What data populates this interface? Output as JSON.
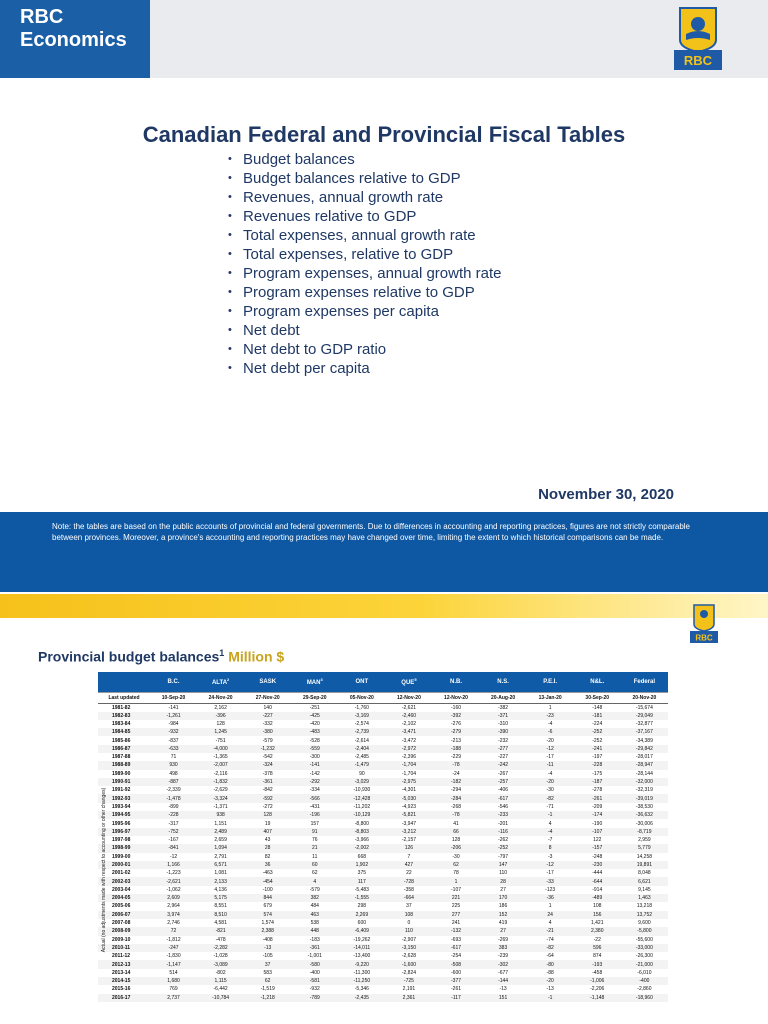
{
  "brand": {
    "line1": "RBC",
    "line2": "Economics",
    "logo_text": "RBC"
  },
  "title": "Canadian Federal and Provincial Fiscal Tables",
  "contents": [
    "Budget balances",
    "Budget balances relative to GDP",
    "Revenues, annual growth rate",
    "Revenues relative to GDP",
    "Total expenses, annual growth rate",
    "Total expenses, relative to GDP",
    "Program expenses, annual growth rate",
    "Program expenses relative to GDP",
    "Program expenses per capita",
    "Net debt",
    "Net debt to GDP ratio",
    "Net debt per capita"
  ],
  "date": "November 30, 2020",
  "note": "Note: the tables are based on the public accounts of provincial and federal governments. Due to differences in accounting and reporting practices, figures are not strictly comparable between provinces. Moreover, a province's accounting and reporting practices may have changed over time, limiting the extent to which historical comparisons can be made.",
  "colors": {
    "brand_blue": "#0d57a3",
    "title_navy": "#1f3864",
    "gold": "#f6c11a",
    "unit_gold": "#caa21b"
  },
  "section2": {
    "title": "Provincial budget balances",
    "title_sup": "1",
    "unit": "Million $",
    "side_label": "Actual (no adjustments made with respect to accounting or other changes)",
    "table": {
      "columns": [
        {
          "label": "",
          "sup": ""
        },
        {
          "label": "B.C.",
          "sup": ""
        },
        {
          "label": "ALTA",
          "sup": "2"
        },
        {
          "label": "SASK",
          "sup": ""
        },
        {
          "label": "MAN",
          "sup": "3"
        },
        {
          "label": "ONT",
          "sup": ""
        },
        {
          "label": "QUE",
          "sup": "5"
        },
        {
          "label": "N.B.",
          "sup": ""
        },
        {
          "label": "N.S.",
          "sup": ""
        },
        {
          "label": "P.E.I.",
          "sup": ""
        },
        {
          "label": "N&L.",
          "sup": ""
        },
        {
          "label": "Federal",
          "sup": ""
        }
      ],
      "last_updated": [
        "Last updated",
        "10-Sep-20",
        "24-Nov-20",
        "27-Nov-20",
        "29-Sep-20",
        "05-Nov-20",
        "12-Nov-20",
        "12-Nov-20",
        "20-Aug-20",
        "13-Jan-20",
        "30-Sep-20",
        "20-Nov-20"
      ],
      "rows": [
        [
          "1981-82",
          "-141",
          "2,162",
          "140",
          "-251",
          "-1,760",
          "-2,621",
          "-160",
          "-382",
          "1",
          "-148",
          "-15,674"
        ],
        [
          "1982-83",
          "-1,261",
          "-396",
          "-227",
          "-425",
          "-3,169",
          "-2,460",
          "-392",
          "-371",
          "-23",
          "-181",
          "-29,049"
        ],
        [
          "1983-84",
          "-984",
          "128",
          "-332",
          "-420",
          "-2,574",
          "-2,102",
          "-276",
          "-310",
          "-4",
          "-224",
          "-32,877"
        ],
        [
          "1984-85",
          "-932",
          "1,245",
          "-380",
          "-483",
          "-2,739",
          "-3,471",
          "-279",
          "-390",
          "-6",
          "-252",
          "-37,167"
        ],
        [
          "1985-86",
          "-837",
          "-751",
          "-579",
          "-528",
          "-2,614",
          "-3,472",
          "-213",
          "-232",
          "-20",
          "-252",
          "-34,389"
        ],
        [
          "1986-87",
          "-633",
          "-4,000",
          "-1,232",
          "-559",
          "-2,404",
          "-2,972",
          "-188",
          "-277",
          "-12",
          "-241",
          "-29,842"
        ],
        [
          "1987-88",
          "71",
          "-1,365",
          "-542",
          "-300",
          "-2,485",
          "-2,396",
          "-229",
          "-227",
          "-17",
          "-197",
          "-28,017"
        ],
        [
          "1988-89",
          "930",
          "-2,007",
          "-324",
          "-141",
          "-1,479",
          "-1,704",
          "-78",
          "-242",
          "-11",
          "-228",
          "-28,947"
        ],
        [
          "1989-90",
          "498",
          "-2,116",
          "-378",
          "-142",
          "90",
          "-1,704",
          "-24",
          "-267",
          "-4",
          "-175",
          "-28,144"
        ],
        [
          "1990-91",
          "-887",
          "-1,832",
          "-361",
          "-292",
          "-3,029",
          "-2,975",
          "-182",
          "-257",
          "-20",
          "-187",
          "-32,000"
        ],
        [
          "1991-92",
          "-2,339",
          "-2,629",
          "-842",
          "-334",
          "-10,930",
          "-4,301",
          "-294",
          "-406",
          "-30",
          "-278",
          "-32,319"
        ],
        [
          "1992-93",
          "-1,478",
          "-3,324",
          "-592",
          "-566",
          "-12,428",
          "-5,030",
          "-284",
          "-617",
          "-82",
          "-261",
          "-39,019"
        ],
        [
          "1993-94",
          "-899",
          "-1,371",
          "-272",
          "-431",
          "-11,202",
          "-4,923",
          "-268",
          "-546",
          "-71",
          "-209",
          "-38,530"
        ],
        [
          "1994-95",
          "-228",
          "938",
          "128",
          "-196",
          "-10,129",
          "-5,821",
          "-78",
          "-233",
          "-1",
          "-174",
          "-36,632"
        ],
        [
          "1995-96",
          "-317",
          "1,151",
          "19",
          "157",
          "-8,800",
          "-3,947",
          "41",
          "-201",
          "4",
          "-190",
          "-30,006"
        ],
        [
          "1996-97",
          "-752",
          "2,489",
          "407",
          "91",
          "-8,803",
          "-3,212",
          "66",
          "-116",
          "-4",
          "-107",
          "-8,719"
        ],
        [
          "1997-98",
          "-167",
          "2,659",
          "43",
          "76",
          "-3,966",
          "-2,157",
          "128",
          "-262",
          "-7",
          "122",
          "2,959"
        ],
        [
          "1998-99",
          "-841",
          "1,094",
          "28",
          "21",
          "-2,002",
          "126",
          "-206",
          "-252",
          "8",
          "-157",
          "5,779"
        ],
        [
          "1999-00",
          "-12",
          "2,791",
          "82",
          "11",
          "668",
          "7",
          "-30",
          "-797",
          "-3",
          "-248",
          "14,258"
        ],
        [
          "2000-01",
          "1,166",
          "6,571",
          "36",
          "60",
          "1,902",
          "427",
          "62",
          "147",
          "-12",
          "-230",
          "19,891"
        ],
        [
          "2001-02",
          "-1,223",
          "1,081",
          "-463",
          "62",
          "375",
          "22",
          "78",
          "110",
          "-17",
          "-444",
          "8,048"
        ],
        [
          "2002-03",
          "-2,621",
          "2,133",
          "-454",
          "4",
          "117",
          "-728",
          "1",
          "28",
          "-33",
          "-644",
          "6,621"
        ],
        [
          "2003-04",
          "-1,062",
          "4,136",
          "-100",
          "-579",
          "-5,483",
          "-358",
          "-107",
          "27",
          "-123",
          "-914",
          "9,145"
        ],
        [
          "2004-05",
          "2,609",
          "5,175",
          "844",
          "382",
          "-1,555",
          "-664",
          "221",
          "170",
          "-36",
          "-489",
          "1,463"
        ],
        [
          "2005-06",
          "2,964",
          "8,551",
          "679",
          "484",
          "298",
          "37",
          "225",
          "186",
          "1",
          "108",
          "13,218"
        ],
        [
          "2006-07",
          "3,974",
          "8,510",
          "574",
          "463",
          "2,269",
          "108",
          "277",
          "152",
          "24",
          "156",
          "13,752"
        ],
        [
          "2007-08",
          "2,746",
          "4,581",
          "1,574",
          "538",
          "600",
          "0",
          "241",
          "419",
          "4",
          "1,421",
          "9,600"
        ],
        [
          "2008-09",
          "72",
          "-821",
          "2,388",
          "448",
          "-6,409",
          "110",
          "-132",
          "27",
          "-21",
          "2,380",
          "-5,800"
        ],
        [
          "2009-10",
          "-1,812",
          "-478",
          "-408",
          "-183",
          "-19,262",
          "-2,907",
          "-693",
          "-269",
          "-74",
          "-22",
          "-55,600"
        ],
        [
          "2010-11",
          "-247",
          "-2,282",
          "-13",
          "-361",
          "-14,011",
          "-3,150",
          "-617",
          "383",
          "-82",
          "596",
          "-33,000"
        ],
        [
          "2011-12",
          "-1,830",
          "-1,028",
          "-105",
          "-1,001",
          "-13,400",
          "-2,628",
          "-254",
          "-239",
          "-64",
          "874",
          "-26,300"
        ],
        [
          "2012-13",
          "-1,147",
          "-3,089",
          "37",
          "-580",
          "-9,220",
          "-1,600",
          "-508",
          "-302",
          "-80",
          "-193",
          "-21,000"
        ],
        [
          "2013-14",
          "514",
          "-802",
          "583",
          "-400",
          "-11,300",
          "-2,824",
          "-600",
          "-677",
          "-88",
          "-458",
          "-6,010"
        ],
        [
          "2014-15",
          "1,680",
          "1,115",
          "62",
          "-581",
          "-11,250",
          "-725",
          "-377",
          "-144",
          "-20",
          "-1,006",
          "-400"
        ],
        [
          "2015-16",
          "769",
          "-6,442",
          "-1,519",
          "-932",
          "-5,346",
          "2,191",
          "-261",
          "-13",
          "-13",
          "-2,206",
          "-2,860"
        ],
        [
          "2016-17",
          "2,737",
          "-10,784",
          "-1,218",
          "-789",
          "-2,435",
          "2,361",
          "-117",
          "151",
          "-1",
          "-1,148",
          "-18,960"
        ]
      ]
    }
  }
}
